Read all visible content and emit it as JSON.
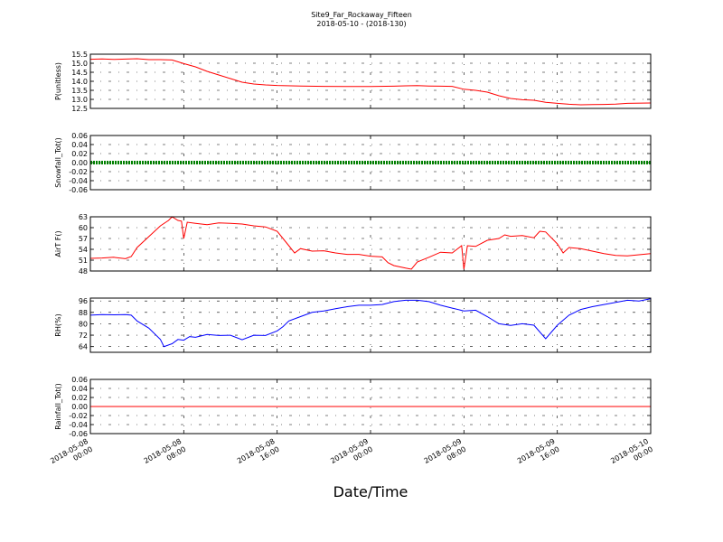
{
  "figure": {
    "title_line1": "Site9_Far_Rockaway_Fifteen",
    "title_line2": "2018-05-10 - (2018-130)",
    "xlabel": "Date/Time"
  },
  "x_axis": {
    "ticks": [
      {
        "line1": "2018-05-08",
        "line2": "00:00"
      },
      {
        "line1": "2018-05-08",
        "line2": "08:00"
      },
      {
        "line1": "2018-05-08",
        "line2": "16:00"
      },
      {
        "line1": "2018-05-09",
        "line2": "00:00"
      },
      {
        "line1": "2018-05-09",
        "line2": "08:00"
      },
      {
        "line1": "2018-05-09",
        "line2": "16:00"
      },
      {
        "line1": "2018-05-10",
        "line2": "00:00"
      }
    ]
  },
  "chart_data": [
    {
      "type": "line",
      "ylabel": "P(unitless)",
      "ylim": [
        12.5,
        15.5
      ],
      "yticks": [
        "12.5",
        "13.0",
        "13.5",
        "14.0",
        "14.5",
        "15.0",
        "15.5"
      ],
      "grid": true,
      "color": "#ff0000",
      "x_unit": "hours since 2018-05-08 00:00",
      "points": [
        [
          0,
          15.22
        ],
        [
          1,
          15.24
        ],
        [
          2,
          15.21
        ],
        [
          3,
          15.23
        ],
        [
          4,
          15.25
        ],
        [
          5,
          15.2
        ],
        [
          6,
          15.2
        ],
        [
          7,
          15.18
        ],
        [
          8,
          14.98
        ],
        [
          9,
          14.8
        ],
        [
          10,
          14.55
        ],
        [
          11,
          14.35
        ],
        [
          12,
          14.15
        ],
        [
          13,
          13.95
        ],
        [
          14,
          13.85
        ],
        [
          15,
          13.8
        ],
        [
          16,
          13.77
        ],
        [
          18,
          13.74
        ],
        [
          20,
          13.72
        ],
        [
          22,
          13.71
        ],
        [
          24,
          13.71
        ],
        [
          26,
          13.73
        ],
        [
          27,
          13.75
        ],
        [
          28,
          13.76
        ],
        [
          29,
          13.74
        ],
        [
          30,
          13.73
        ],
        [
          31,
          13.72
        ],
        [
          32,
          13.56
        ],
        [
          33,
          13.5
        ],
        [
          34,
          13.4
        ],
        [
          35,
          13.2
        ],
        [
          36,
          13.05
        ],
        [
          37,
          12.98
        ],
        [
          38,
          12.95
        ],
        [
          39,
          12.84
        ],
        [
          40,
          12.78
        ],
        [
          41,
          12.73
        ],
        [
          42,
          12.7
        ],
        [
          43,
          12.71
        ],
        [
          44,
          12.72
        ],
        [
          45,
          12.74
        ],
        [
          46,
          12.78
        ],
        [
          48,
          12.8
        ]
      ]
    },
    {
      "type": "line",
      "ylabel": "Snowfall_Tot()",
      "ylim": [
        -0.06,
        0.06
      ],
      "yticks": [
        "-0.06",
        "-0.04",
        "-0.02",
        "0.00",
        "0.02",
        "0.04",
        "0.06"
      ],
      "grid": true,
      "color": "#008000",
      "marker": "dot",
      "x_unit": "hours since 2018-05-08 00:00",
      "points": [
        [
          0,
          0
        ],
        [
          48,
          0
        ]
      ]
    },
    {
      "type": "line",
      "ylabel": "AirT F()",
      "ylim": [
        48,
        63
      ],
      "yticks": [
        "48",
        "51",
        "54",
        "57",
        "60",
        "63"
      ],
      "grid": true,
      "color": "#ff0000",
      "x_unit": "hours since 2018-05-08 00:00",
      "points": [
        [
          0,
          51.5
        ],
        [
          1,
          51.6
        ],
        [
          2,
          51.8
        ],
        [
          3,
          51.4
        ],
        [
          3.5,
          52.0
        ],
        [
          4,
          54.5
        ],
        [
          5,
          57.5
        ],
        [
          6,
          60.5
        ],
        [
          6.7,
          62.0
        ],
        [
          7,
          63.0
        ],
        [
          7.5,
          62.0
        ],
        [
          7.8,
          61.8
        ],
        [
          8.0,
          57.0
        ],
        [
          8.3,
          61.5
        ],
        [
          9,
          61.2
        ],
        [
          10,
          60.8
        ],
        [
          11,
          61.3
        ],
        [
          12,
          61.2
        ],
        [
          13,
          61.0
        ],
        [
          14,
          60.5
        ],
        [
          15,
          60.2
        ],
        [
          16,
          59.0
        ],
        [
          17,
          55.0
        ],
        [
          17.5,
          53.0
        ],
        [
          18,
          54.2
        ],
        [
          19,
          53.5
        ],
        [
          20,
          53.6
        ],
        [
          21,
          53.0
        ],
        [
          22,
          52.6
        ],
        [
          23,
          52.6
        ],
        [
          24,
          52.1
        ],
        [
          25,
          51.9
        ],
        [
          25.5,
          50.3
        ],
        [
          26,
          49.5
        ],
        [
          27,
          48.8
        ],
        [
          27.5,
          48.5
        ],
        [
          28,
          50.5
        ],
        [
          29,
          51.8
        ],
        [
          30,
          53.2
        ],
        [
          31,
          53.0
        ],
        [
          31.8,
          55.0
        ],
        [
          32.0,
          48.5
        ],
        [
          32.3,
          55.0
        ],
        [
          33,
          54.8
        ],
        [
          34,
          56.5
        ],
        [
          35,
          57.0
        ],
        [
          35.5,
          58.0
        ],
        [
          36,
          57.6
        ],
        [
          37,
          57.8
        ],
        [
          38,
          57.2
        ],
        [
          38.5,
          59.0
        ],
        [
          39,
          58.8
        ],
        [
          40,
          55.5
        ],
        [
          40.5,
          53.0
        ],
        [
          41,
          54.5
        ],
        [
          42,
          54.2
        ],
        [
          43,
          53.5
        ],
        [
          44,
          52.8
        ],
        [
          45,
          52.3
        ],
        [
          46,
          52.2
        ],
        [
          47,
          52.5
        ],
        [
          48,
          52.8
        ]
      ]
    },
    {
      "type": "line",
      "ylabel": "RH(%)",
      "ylim": [
        60,
        98
      ],
      "yticks": [
        "64",
        "72",
        "80",
        "88",
        "96"
      ],
      "grid": true,
      "color": "#0000ff",
      "x_unit": "hours since 2018-05-08 00:00",
      "points": [
        [
          0,
          86
        ],
        [
          1,
          86.5
        ],
        [
          2,
          86.3
        ],
        [
          3,
          86.5
        ],
        [
          3.5,
          86
        ],
        [
          4,
          82
        ],
        [
          5,
          77
        ],
        [
          6,
          69
        ],
        [
          6.3,
          64
        ],
        [
          7,
          66
        ],
        [
          7.5,
          69
        ],
        [
          8,
          68.5
        ],
        [
          8.5,
          71
        ],
        [
          9,
          70.5
        ],
        [
          10,
          72.5
        ],
        [
          11,
          71.8
        ],
        [
          12,
          72
        ],
        [
          13,
          68.8
        ],
        [
          14,
          72
        ],
        [
          15,
          71.8
        ],
        [
          16,
          75
        ],
        [
          16.5,
          78
        ],
        [
          17,
          82
        ],
        [
          18,
          85
        ],
        [
          19,
          88
        ],
        [
          20,
          89
        ],
        [
          21,
          90.5
        ],
        [
          22,
          92
        ],
        [
          23,
          93
        ],
        [
          24,
          93
        ],
        [
          25,
          93.5
        ],
        [
          26,
          95.5
        ],
        [
          27,
          96.5
        ],
        [
          28,
          96.5
        ],
        [
          29,
          95.5
        ],
        [
          30,
          93
        ],
        [
          31,
          91
        ],
        [
          32,
          89
        ],
        [
          33,
          89.5
        ],
        [
          34,
          85
        ],
        [
          35,
          80
        ],
        [
          36,
          78.8
        ],
        [
          37,
          80
        ],
        [
          38,
          79
        ],
        [
          39,
          69.5
        ],
        [
          40,
          79
        ],
        [
          41,
          86
        ],
        [
          42,
          90
        ],
        [
          43,
          92
        ],
        [
          44,
          93.5
        ],
        [
          45,
          95
        ],
        [
          46,
          96.5
        ],
        [
          47,
          96
        ],
        [
          48,
          97.5
        ]
      ]
    },
    {
      "type": "line",
      "ylabel": "Rainfall_Tot()",
      "ylim": [
        -0.06,
        0.06
      ],
      "yticks": [
        "-0.06",
        "-0.04",
        "-0.02",
        "0.00",
        "0.02",
        "0.04",
        "0.06"
      ],
      "grid": true,
      "color": "#ff0000",
      "x_unit": "hours since 2018-05-08 00:00",
      "points": [
        [
          0,
          0
        ],
        [
          48,
          0
        ]
      ]
    }
  ]
}
